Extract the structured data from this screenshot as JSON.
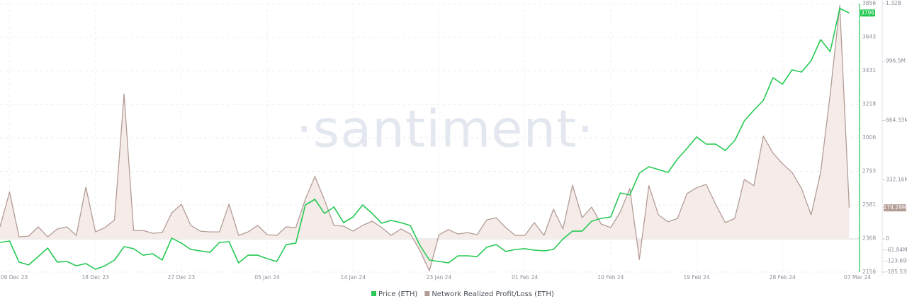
{
  "chart_data": {
    "type": "line",
    "watermark": "·santiment·",
    "x": [
      "2023-12-08",
      "2023-12-09",
      "2023-12-10",
      "2023-12-11",
      "2023-12-12",
      "2023-12-13",
      "2023-12-14",
      "2023-12-15",
      "2023-12-16",
      "2023-12-17",
      "2023-12-18",
      "2023-12-19",
      "2023-12-20",
      "2023-12-21",
      "2023-12-22",
      "2023-12-23",
      "2023-12-24",
      "2023-12-25",
      "2023-12-26",
      "2023-12-27",
      "2023-12-28",
      "2023-12-29",
      "2023-12-30",
      "2023-12-31",
      "2024-01-01",
      "2024-01-02",
      "2024-01-03",
      "2024-01-04",
      "2024-01-05",
      "2024-01-06",
      "2024-01-07",
      "2024-01-08",
      "2024-01-09",
      "2024-01-10",
      "2024-01-11",
      "2024-01-12",
      "2024-01-13",
      "2024-01-14",
      "2024-01-15",
      "2024-01-16",
      "2024-01-17",
      "2024-01-18",
      "2024-01-19",
      "2024-01-20",
      "2024-01-21",
      "2024-01-22",
      "2024-01-23",
      "2024-01-24",
      "2024-01-25",
      "2024-01-26",
      "2024-01-27",
      "2024-01-28",
      "2024-01-29",
      "2024-01-30",
      "2024-01-31",
      "2024-02-01",
      "2024-02-02",
      "2024-02-03",
      "2024-02-04",
      "2024-02-05",
      "2024-02-06",
      "2024-02-07",
      "2024-02-08",
      "2024-02-09",
      "2024-02-10",
      "2024-02-11",
      "2024-02-12",
      "2024-02-13",
      "2024-02-14",
      "2024-02-15",
      "2024-02-16",
      "2024-02-17",
      "2024-02-18",
      "2024-02-19",
      "2024-02-20",
      "2024-02-21",
      "2024-02-22",
      "2024-02-23",
      "2024-02-24",
      "2024-02-25",
      "2024-02-26",
      "2024-02-27",
      "2024-02-28",
      "2024-02-29",
      "2024-03-01",
      "2024-03-02",
      "2024-03-03",
      "2024-03-04",
      "2024-03-05",
      "2024-03-06"
    ],
    "xlim": [
      "2023-12-08",
      "2024-03-07"
    ],
    "xticks": [
      {
        "value": "2023-12-09",
        "label": "09 Dec 23"
      },
      {
        "value": "2023-12-18",
        "label": "18 Dec 23"
      },
      {
        "value": "2023-12-27",
        "label": "27 Dec 23"
      },
      {
        "value": "2024-01-05",
        "label": "05 Jan 24"
      },
      {
        "value": "2024-01-14",
        "label": "14 Jan 24"
      },
      {
        "value": "2024-01-23",
        "label": "23 Jan 24"
      },
      {
        "value": "2024-02-01",
        "label": "01 Feb 24"
      },
      {
        "value": "2024-02-10",
        "label": "10 Feb 24"
      },
      {
        "value": "2024-02-19",
        "label": "19 Feb 24"
      },
      {
        "value": "2024-02-28",
        "label": "28 Feb 24"
      },
      {
        "value": "2024-03-07",
        "label": "07 Mar 24"
      }
    ],
    "ylim": [
      2156,
      3856
    ],
    "yticks": [
      2156,
      2368,
      2581,
      2793,
      3006,
      3218,
      3431,
      3643,
      3856
    ],
    "y2lim": [
      -185530000,
      1320000000
    ],
    "y2ticks": [
      {
        "value": -185530000,
        "label": "-185.53M"
      },
      {
        "value": -123690000,
        "label": "-123.69M"
      },
      {
        "value": -61840000,
        "label": "-61.84M"
      },
      0,
      {
        "value": 332160000,
        "label": "332.16M"
      },
      {
        "value": 664330000,
        "label": "664.33M"
      },
      {
        "value": 996500000,
        "label": "996.5M"
      },
      {
        "value": 1320000000,
        "label": "1.32B"
      }
    ],
    "grid": true,
    "legend": "bottom",
    "series": [
      {
        "name": "Price (ETH)",
        "color": "#26c953",
        "values": [
          2344,
          2353,
          2219,
          2201,
          2254,
          2308,
          2219,
          2223,
          2196,
          2210,
          2174,
          2196,
          2232,
          2317,
          2304,
          2263,
          2272,
          2232,
          2371,
          2339,
          2299,
          2290,
          2281,
          2344,
          2348,
          2214,
          2263,
          2263,
          2241,
          2223,
          2330,
          2339,
          2581,
          2617,
          2527,
          2568,
          2469,
          2505,
          2581,
          2527,
          2465,
          2483,
          2469,
          2451,
          2326,
          2232,
          2223,
          2214,
          2259,
          2259,
          2254,
          2313,
          2330,
          2286,
          2299,
          2304,
          2295,
          2290,
          2299,
          2366,
          2415,
          2415,
          2478,
          2496,
          2505,
          2657,
          2644,
          2782,
          2823,
          2805,
          2787,
          2872,
          2939,
          3011,
          2966,
          2966,
          2926,
          2988,
          3113,
          3181,
          3243,
          3386,
          3346,
          3436,
          3422,
          3494,
          3628,
          3552,
          3825,
          3796
        ]
      },
      {
        "name": "Network Realized Profit/Loss (ETH)",
        "color": "#b39c95",
        "fill": "#f5ecea",
        "axis": "y2",
        "current_value_label": "174.29M",
        "values": [
          68000000,
          263000000,
          12000000,
          16000000,
          68000000,
          12000000,
          56000000,
          68000000,
          20000000,
          291000000,
          40000000,
          64000000,
          107000000,
          812000000,
          48000000,
          48000000,
          32000000,
          36000000,
          147000000,
          195000000,
          76000000,
          44000000,
          40000000,
          40000000,
          195000000,
          20000000,
          40000000,
          76000000,
          24000000,
          20000000,
          68000000,
          64000000,
          223000000,
          350000000,
          219000000,
          76000000,
          72000000,
          44000000,
          76000000,
          100000000,
          64000000,
          20000000,
          56000000,
          28000000,
          -64000000,
          -179000000,
          24000000,
          52000000,
          28000000,
          36000000,
          24000000,
          107000000,
          119000000,
          64000000,
          20000000,
          20000000,
          92000000,
          20000000,
          167000000,
          56000000,
          302000000,
          119000000,
          179000000,
          84000000,
          64000000,
          151000000,
          283000000,
          -115000000,
          299000000,
          135000000,
          96000000,
          115000000,
          255000000,
          287000000,
          306000000,
          195000000,
          92000000,
          115000000,
          334000000,
          299000000,
          577000000,
          482000000,
          422000000,
          374000000,
          283000000,
          135000000,
          374000000,
          812000000,
          1309000000,
          174290000
        ]
      }
    ]
  }
}
